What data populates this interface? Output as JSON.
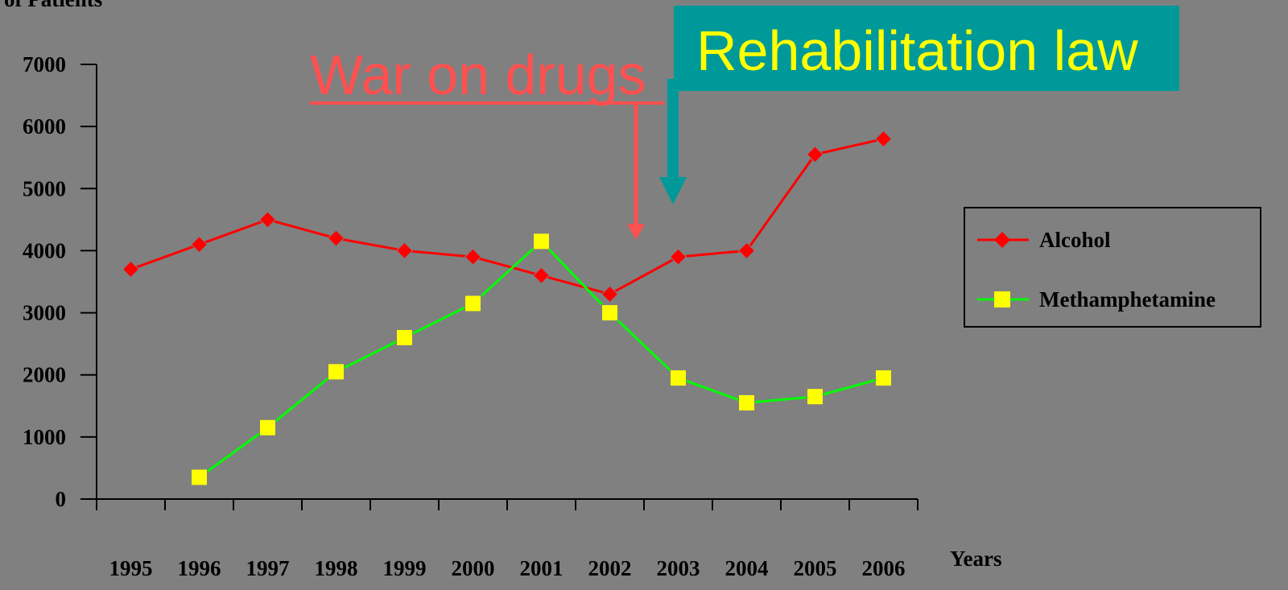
{
  "chart_data": {
    "type": "line",
    "ylabel": "of Patients",
    "xlabel": "Years",
    "categories": [
      "1995",
      "1996",
      "1997",
      "1998",
      "1999",
      "2000",
      "2001",
      "2002",
      "2003",
      "2004",
      "2005",
      "2006"
    ],
    "series": [
      {
        "name": "Alcohol",
        "color": "#ff0000",
        "marker": "diamond",
        "marker_color": "#ff0000",
        "values": [
          3700,
          4100,
          4500,
          4200,
          4000,
          3900,
          3600,
          3300,
          3900,
          4000,
          5550,
          5800
        ]
      },
      {
        "name": "Methamphetamine",
        "color": "#00ff00",
        "marker": "square",
        "marker_color": "#ffff00",
        "values": [
          null,
          350,
          1150,
          2050,
          2600,
          3150,
          4150,
          3000,
          1950,
          1550,
          1650,
          1950
        ]
      }
    ],
    "ylim": [
      0,
      7000
    ],
    "yticks": [
      0,
      1000,
      2000,
      3000,
      4000,
      5000,
      6000,
      7000
    ],
    "legend": "right",
    "annotations": [
      "War on drugs",
      "Rehabilitation law"
    ]
  }
}
